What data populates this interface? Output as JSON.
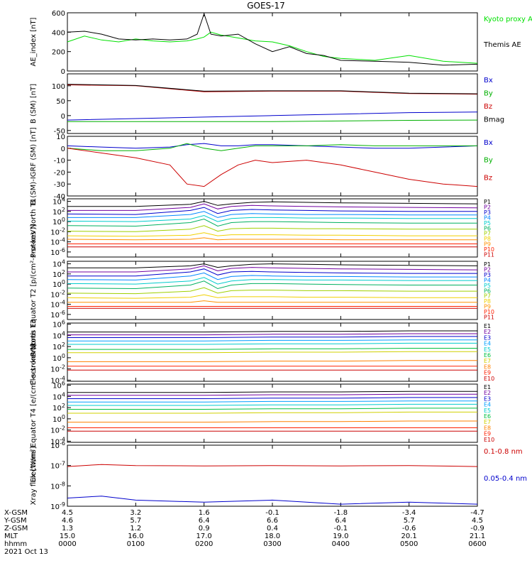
{
  "title": "GOES-17",
  "footer": {
    "row_labels": [
      "X-GSM",
      "Y-GSM",
      "Z-GSM",
      "MLT",
      "hhmm"
    ],
    "date": "2021 Oct 13",
    "columns": [
      [
        "4.5",
        "4.6",
        "1.3",
        "15.0",
        "0000"
      ],
      [
        "3.2",
        "5.7",
        "1.2",
        "16.0",
        "0100"
      ],
      [
        "1.6",
        "6.4",
        "0.9",
        "17.0",
        "0200"
      ],
      [
        "-0.1",
        "6.6",
        "0.4",
        "18.0",
        "0300"
      ],
      [
        "-1.8",
        "6.4",
        "-0.1",
        "19.0",
        "0400"
      ],
      [
        "-3.4",
        "5.7",
        "-0.6",
        "20.1",
        "0500"
      ],
      [
        "-4.7",
        "4.5",
        "-0.9",
        "21.1",
        "0600"
      ]
    ]
  },
  "chart_data": [
    {
      "type": "line",
      "ylabel": "AE_index [nT]",
      "ylim": [
        0,
        600
      ],
      "yticks": [
        "0",
        "200",
        "400",
        "600"
      ],
      "x_hours": [
        0,
        0.25,
        0.5,
        0.75,
        1.0,
        1.25,
        1.5,
        1.75,
        1.9,
        2.0,
        2.1,
        2.25,
        2.5,
        2.75,
        3.0,
        3.25,
        3.5,
        3.75,
        4.0,
        4.5,
        5.0,
        5.5,
        6.0
      ],
      "series": [
        {
          "name": "Kyoto proxy AE",
          "color": "#00e000",
          "values": [
            300,
            360,
            320,
            300,
            330,
            310,
            300,
            310,
            330,
            350,
            400,
            370,
            340,
            310,
            300,
            260,
            200,
            150,
            130,
            110,
            160,
            100,
            80
          ]
        },
        {
          "name": "Themis AE",
          "color": "#000000",
          "values": [
            400,
            410,
            380,
            330,
            320,
            330,
            320,
            330,
            380,
            590,
            380,
            360,
            380,
            280,
            200,
            250,
            180,
            160,
            110,
            100,
            90,
            60,
            70
          ]
        }
      ]
    },
    {
      "type": "line",
      "ylabel": "B (SM) [nT]",
      "ylim": [
        -60,
        140
      ],
      "yticks": [
        "-50",
        "0",
        "50",
        "100"
      ],
      "x_hours": [
        0,
        1,
        2,
        3,
        4,
        5,
        6
      ],
      "series": [
        {
          "name": "Bx",
          "color": "#0000cc",
          "values": [
            -15,
            -10,
            -5,
            0,
            5,
            10,
            12
          ]
        },
        {
          "name": "By",
          "color": "#00b000",
          "values": [
            -20,
            -20,
            -20,
            -20,
            -18,
            -16,
            -15
          ]
        },
        {
          "name": "Bz",
          "color": "#cc0000",
          "values": [
            103,
            100,
            80,
            82,
            82,
            74,
            72
          ]
        },
        {
          "name": "Bmag",
          "color": "#000000",
          "values": [
            105,
            101,
            82,
            83,
            83,
            75,
            73
          ]
        }
      ]
    },
    {
      "type": "line",
      "ylabel": "B (SM)-IGRF (SM) [nT]",
      "ylim": [
        -40,
        10
      ],
      "yticks": [
        "-40",
        "-30",
        "-20",
        "-10",
        "0",
        "10"
      ],
      "x_hours": [
        0,
        0.5,
        1.0,
        1.5,
        1.75,
        2.0,
        2.25,
        2.5,
        2.75,
        3.0,
        3.5,
        4.0,
        4.5,
        5.0,
        5.5,
        6.0
      ],
      "series": [
        {
          "name": "Bx",
          "color": "#0000cc",
          "values": [
            2,
            1,
            0,
            1,
            3,
            4,
            2,
            2,
            3,
            3,
            2,
            1,
            0,
            0,
            1,
            2
          ]
        },
        {
          "name": "By",
          "color": "#00b000",
          "values": [
            0,
            -2,
            -2,
            0,
            4,
            0,
            -2,
            0,
            2,
            2,
            2,
            3,
            2,
            2,
            2,
            2
          ]
        },
        {
          "name": "Bz",
          "color": "#cc0000",
          "values": [
            0,
            -4,
            -8,
            -14,
            -30,
            -32,
            -22,
            -14,
            -10,
            -12,
            -10,
            -14,
            -20,
            -26,
            -30,
            -32
          ]
        }
      ]
    },
    {
      "type": "line",
      "ylog": true,
      "ylabel": "Protons North T1",
      "yticks": [
        "10^4",
        "10^2",
        "10^0",
        "10^-2",
        "10^-4",
        "10^-6"
      ],
      "ylim_log": [
        -7,
        4.5
      ],
      "x_hours": [
        0,
        1.0,
        1.8,
        2.0,
        2.2,
        2.4,
        2.7,
        3.0,
        3.5,
        4.0,
        5.0,
        6.0
      ],
      "series": [
        {
          "name": "P1",
          "color": "#000000",
          "values": [
            3.0,
            3.0,
            3.4,
            4.0,
            3.2,
            3.5,
            3.8,
            3.9,
            3.8,
            3.7,
            3.6,
            3.5
          ]
        },
        {
          "name": "P2",
          "color": "#7000a0",
          "values": [
            2.2,
            2.2,
            2.8,
            3.5,
            2.5,
            3.0,
            3.2,
            3.1,
            3.0,
            2.9,
            2.8,
            2.7
          ]
        },
        {
          "name": "P3",
          "color": "#0000cc",
          "values": [
            1.5,
            1.4,
            2.2,
            2.8,
            1.6,
            2.2,
            2.4,
            2.3,
            2.2,
            2.1,
            2.0,
            2.0
          ]
        },
        {
          "name": "P4",
          "color": "#0088ff",
          "values": [
            0.8,
            0.8,
            1.4,
            2.0,
            0.8,
            1.4,
            1.6,
            1.5,
            1.4,
            1.4,
            1.3,
            1.3
          ]
        },
        {
          "name": "P5",
          "color": "#00cccc",
          "values": [
            0.1,
            0.0,
            0.5,
            1.2,
            0.0,
            0.6,
            0.8,
            0.8,
            0.7,
            0.7,
            0.6,
            0.6
          ]
        },
        {
          "name": "P6",
          "color": "#00b060",
          "values": [
            -0.8,
            -0.9,
            -0.2,
            0.5,
            -0.9,
            -0.2,
            0.0,
            0.0,
            -0.1,
            -0.2,
            -0.3,
            -0.3
          ]
        },
        {
          "name": "P7",
          "color": "#a0d000",
          "values": [
            -1.9,
            -2.0,
            -1.5,
            -0.8,
            -1.9,
            -1.4,
            -1.3,
            -1.3,
            -1.4,
            -1.4,
            -1.5,
            -1.5
          ]
        },
        {
          "name": "P8",
          "color": "#f0d000",
          "values": [
            -2.8,
            -2.9,
            -2.7,
            -2.2,
            -2.8,
            -2.6,
            -2.6,
            -2.6,
            -2.7,
            -2.7,
            -2.8,
            -2.8
          ]
        },
        {
          "name": "P9",
          "color": "#ff9000",
          "values": [
            -3.5,
            -3.6,
            -3.5,
            -3.2,
            -3.6,
            -3.5,
            -3.5,
            -3.5,
            -3.5,
            -3.6,
            -3.6,
            -3.6
          ]
        },
        {
          "name": "P10",
          "color": "#ff2000",
          "values": [
            -4.4,
            -4.4,
            -4.4,
            -4.4,
            -4.4,
            -4.4,
            -4.4,
            -4.4,
            -4.4,
            -4.4,
            -4.4,
            -4.4
          ]
        },
        {
          "name": "P11",
          "color": "#cc0000",
          "values": [
            -5.0,
            -5.0,
            -5.0,
            -5.0,
            -5.0,
            -5.0,
            -5.0,
            -5.0,
            -5.0,
            -5.0,
            -5.0,
            -5.0
          ]
        }
      ]
    },
    {
      "type": "line",
      "ylog": true,
      "ylabel": "Protons Equator T2 [p/(cm²-s-sr-keV)]",
      "yticks": [
        "10^4",
        "10^2",
        "10^0",
        "10^-2",
        "10^-4",
        "10^-6"
      ],
      "ylim_log": [
        -7,
        4.5
      ],
      "x_hours": [
        0,
        1.0,
        1.8,
        2.0,
        2.2,
        2.4,
        2.7,
        3.0,
        3.5,
        4.0,
        5.0,
        6.0
      ],
      "series": [
        {
          "name": "P1",
          "color": "#000000",
          "values": [
            3.2,
            3.2,
            3.6,
            4.0,
            3.3,
            3.6,
            3.9,
            4.0,
            3.9,
            3.8,
            3.7,
            3.6
          ]
        },
        {
          "name": "P2",
          "color": "#7000a0",
          "values": [
            2.4,
            2.4,
            3.0,
            3.6,
            2.6,
            3.1,
            3.3,
            3.2,
            3.1,
            3.0,
            2.9,
            2.8
          ]
        },
        {
          "name": "P3",
          "color": "#0000cc",
          "values": [
            1.6,
            1.6,
            2.4,
            3.0,
            1.8,
            2.4,
            2.5,
            2.4,
            2.3,
            2.2,
            2.1,
            2.1
          ]
        },
        {
          "name": "P4",
          "color": "#0088ff",
          "values": [
            0.9,
            0.8,
            1.6,
            2.2,
            0.9,
            1.5,
            1.7,
            1.6,
            1.5,
            1.5,
            1.4,
            1.4
          ]
        },
        {
          "name": "P5",
          "color": "#00cccc",
          "values": [
            0.1,
            0.0,
            0.6,
            1.3,
            0.0,
            0.6,
            0.9,
            0.9,
            0.8,
            0.8,
            0.7,
            0.7
          ]
        },
        {
          "name": "P6",
          "color": "#00b060",
          "values": [
            -0.8,
            -0.9,
            -0.2,
            0.6,
            -0.9,
            -0.2,
            0.1,
            0.1,
            0.0,
            -0.1,
            -0.2,
            -0.2
          ]
        },
        {
          "name": "P7",
          "color": "#a0d000",
          "values": [
            -1.8,
            -1.9,
            -1.4,
            -0.7,
            -1.8,
            -1.3,
            -1.2,
            -1.2,
            -1.3,
            -1.3,
            -1.4,
            -1.4
          ]
        },
        {
          "name": "P8",
          "color": "#f0d000",
          "values": [
            -2.7,
            -2.8,
            -2.6,
            -2.1,
            -2.7,
            -2.5,
            -2.5,
            -2.5,
            -2.6,
            -2.6,
            -2.7,
            -2.7
          ]
        },
        {
          "name": "P9",
          "color": "#ff9000",
          "values": [
            -3.6,
            -3.6,
            -3.6,
            -3.3,
            -3.6,
            -3.6,
            -3.6,
            -3.6,
            -3.6,
            -3.6,
            -3.6,
            -3.6
          ]
        },
        {
          "name": "P10",
          "color": "#ff2000",
          "values": [
            -4.4,
            -4.4,
            -4.4,
            -4.4,
            -4.4,
            -4.4,
            -4.4,
            -4.4,
            -4.4,
            -4.4,
            -4.4,
            -4.4
          ]
        },
        {
          "name": "P11",
          "color": "#cc0000",
          "values": [
            -4.8,
            -4.8,
            -4.8,
            -4.8,
            -4.8,
            -4.8,
            -4.8,
            -4.8,
            -4.8,
            -4.8,
            -4.8,
            -4.8
          ]
        }
      ]
    },
    {
      "type": "line",
      "ylog": true,
      "ylabel": "Electrons North T3",
      "yticks": [
        "10^6",
        "10^4",
        "10^2",
        "10^0",
        "10^-2",
        "10^-4"
      ],
      "ylim_log": [
        -4.2,
        6.2
      ],
      "x_hours": [
        0,
        1,
        2,
        3,
        4,
        5,
        6
      ],
      "series": [
        {
          "name": "E1",
          "color": "#000000",
          "values": [
            4.6,
            4.6,
            4.6,
            4.7,
            4.7,
            4.8,
            4.8
          ]
        },
        {
          "name": "E2",
          "color": "#7000a0",
          "values": [
            4.1,
            4.1,
            4.1,
            4.2,
            4.2,
            4.3,
            4.3
          ]
        },
        {
          "name": "E3",
          "color": "#0000cc",
          "values": [
            3.6,
            3.6,
            3.6,
            3.7,
            3.7,
            3.8,
            3.8
          ]
        },
        {
          "name": "E4",
          "color": "#00a0ff",
          "values": [
            3.0,
            3.0,
            3.0,
            3.1,
            3.1,
            3.2,
            3.2
          ]
        },
        {
          "name": "E5",
          "color": "#00cccc",
          "values": [
            2.4,
            2.4,
            2.4,
            2.5,
            2.5,
            2.6,
            2.6
          ]
        },
        {
          "name": "E6",
          "color": "#00c040",
          "values": [
            1.5,
            1.5,
            1.5,
            1.6,
            1.6,
            1.7,
            1.7
          ]
        },
        {
          "name": "E7",
          "color": "#d0d000",
          "values": [
            0.9,
            0.9,
            0.9,
            1.0,
            1.0,
            1.1,
            1.1
          ]
        },
        {
          "name": "E8",
          "color": "#ff8000",
          "values": [
            -0.7,
            -0.7,
            -0.7,
            -0.6,
            -0.6,
            -0.5,
            -0.5
          ]
        },
        {
          "name": "E9",
          "color": "#ff2000",
          "values": [
            -1.5,
            -1.5,
            -1.5,
            -1.5,
            -1.5,
            -1.5,
            -1.5
          ]
        },
        {
          "name": "E10",
          "color": "#cc0000",
          "values": [
            -2.2,
            -2.2,
            -2.2,
            -2.2,
            -2.2,
            -2.2,
            -2.2
          ]
        }
      ]
    },
    {
      "type": "line",
      "ylog": true,
      "ylabel": "Electrons Equator T4 [e/(cm²-s-sr-keV)]",
      "yticks": [
        "10^6",
        "10^4",
        "10^2",
        "10^0",
        "10^-2",
        "10^-4"
      ],
      "ylim_log": [
        -4.2,
        6.2
      ],
      "x_hours": [
        0,
        1,
        2,
        3,
        4,
        5,
        6
      ],
      "series": [
        {
          "name": "E1",
          "color": "#000000",
          "values": [
            4.7,
            4.7,
            4.7,
            4.8,
            4.8,
            4.9,
            4.9
          ]
        },
        {
          "name": "E2",
          "color": "#7000a0",
          "values": [
            4.2,
            4.2,
            4.2,
            4.3,
            4.3,
            4.4,
            4.4
          ]
        },
        {
          "name": "E3",
          "color": "#0000cc",
          "values": [
            3.6,
            3.6,
            3.6,
            3.7,
            3.7,
            3.8,
            3.8
          ]
        },
        {
          "name": "E4",
          "color": "#00a0ff",
          "values": [
            3.0,
            3.0,
            3.0,
            3.1,
            3.1,
            3.2,
            3.2
          ]
        },
        {
          "name": "E5",
          "color": "#00cccc",
          "values": [
            2.4,
            2.4,
            2.4,
            2.5,
            2.5,
            2.6,
            2.6
          ]
        },
        {
          "name": "E6",
          "color": "#00c040",
          "values": [
            1.7,
            1.7,
            1.7,
            1.8,
            1.8,
            1.9,
            1.9
          ]
        },
        {
          "name": "E7",
          "color": "#d0d000",
          "values": [
            1.0,
            1.0,
            1.0,
            1.1,
            1.1,
            1.2,
            1.2
          ]
        },
        {
          "name": "E8",
          "color": "#ff8000",
          "values": [
            -0.6,
            -0.6,
            -0.6,
            -0.5,
            -0.5,
            -0.4,
            -0.4
          ]
        },
        {
          "name": "E9",
          "color": "#ff2000",
          "values": [
            -1.6,
            -1.6,
            -1.6,
            -1.6,
            -1.6,
            -1.6,
            -1.6
          ]
        },
        {
          "name": "E10",
          "color": "#cc0000",
          "values": [
            -2.2,
            -2.2,
            -2.2,
            -2.2,
            -2.2,
            -2.2,
            -2.2
          ]
        }
      ]
    },
    {
      "type": "line",
      "ylog": true,
      "ylabel": "Xray flux [W/m²]",
      "yticks": [
        "10^-6",
        "10^-7",
        "10^-8",
        "10^-9"
      ],
      "ylim_log": [
        -9,
        -6
      ],
      "x_hours": [
        0,
        0.5,
        1.0,
        2.0,
        3.0,
        4.0,
        5.0,
        6.0
      ],
      "series": [
        {
          "name": "0.1-0.8 nm",
          "color": "#cc0000",
          "values": [
            -7.05,
            -6.95,
            -7.0,
            -7.02,
            -7.0,
            -7.02,
            -7.0,
            -7.05
          ]
        },
        {
          "name": "0.05-0.4 nm",
          "color": "#0000cc",
          "values": [
            -8.6,
            -8.5,
            -8.7,
            -8.8,
            -8.7,
            -8.9,
            -8.8,
            -8.9
          ]
        }
      ]
    }
  ]
}
